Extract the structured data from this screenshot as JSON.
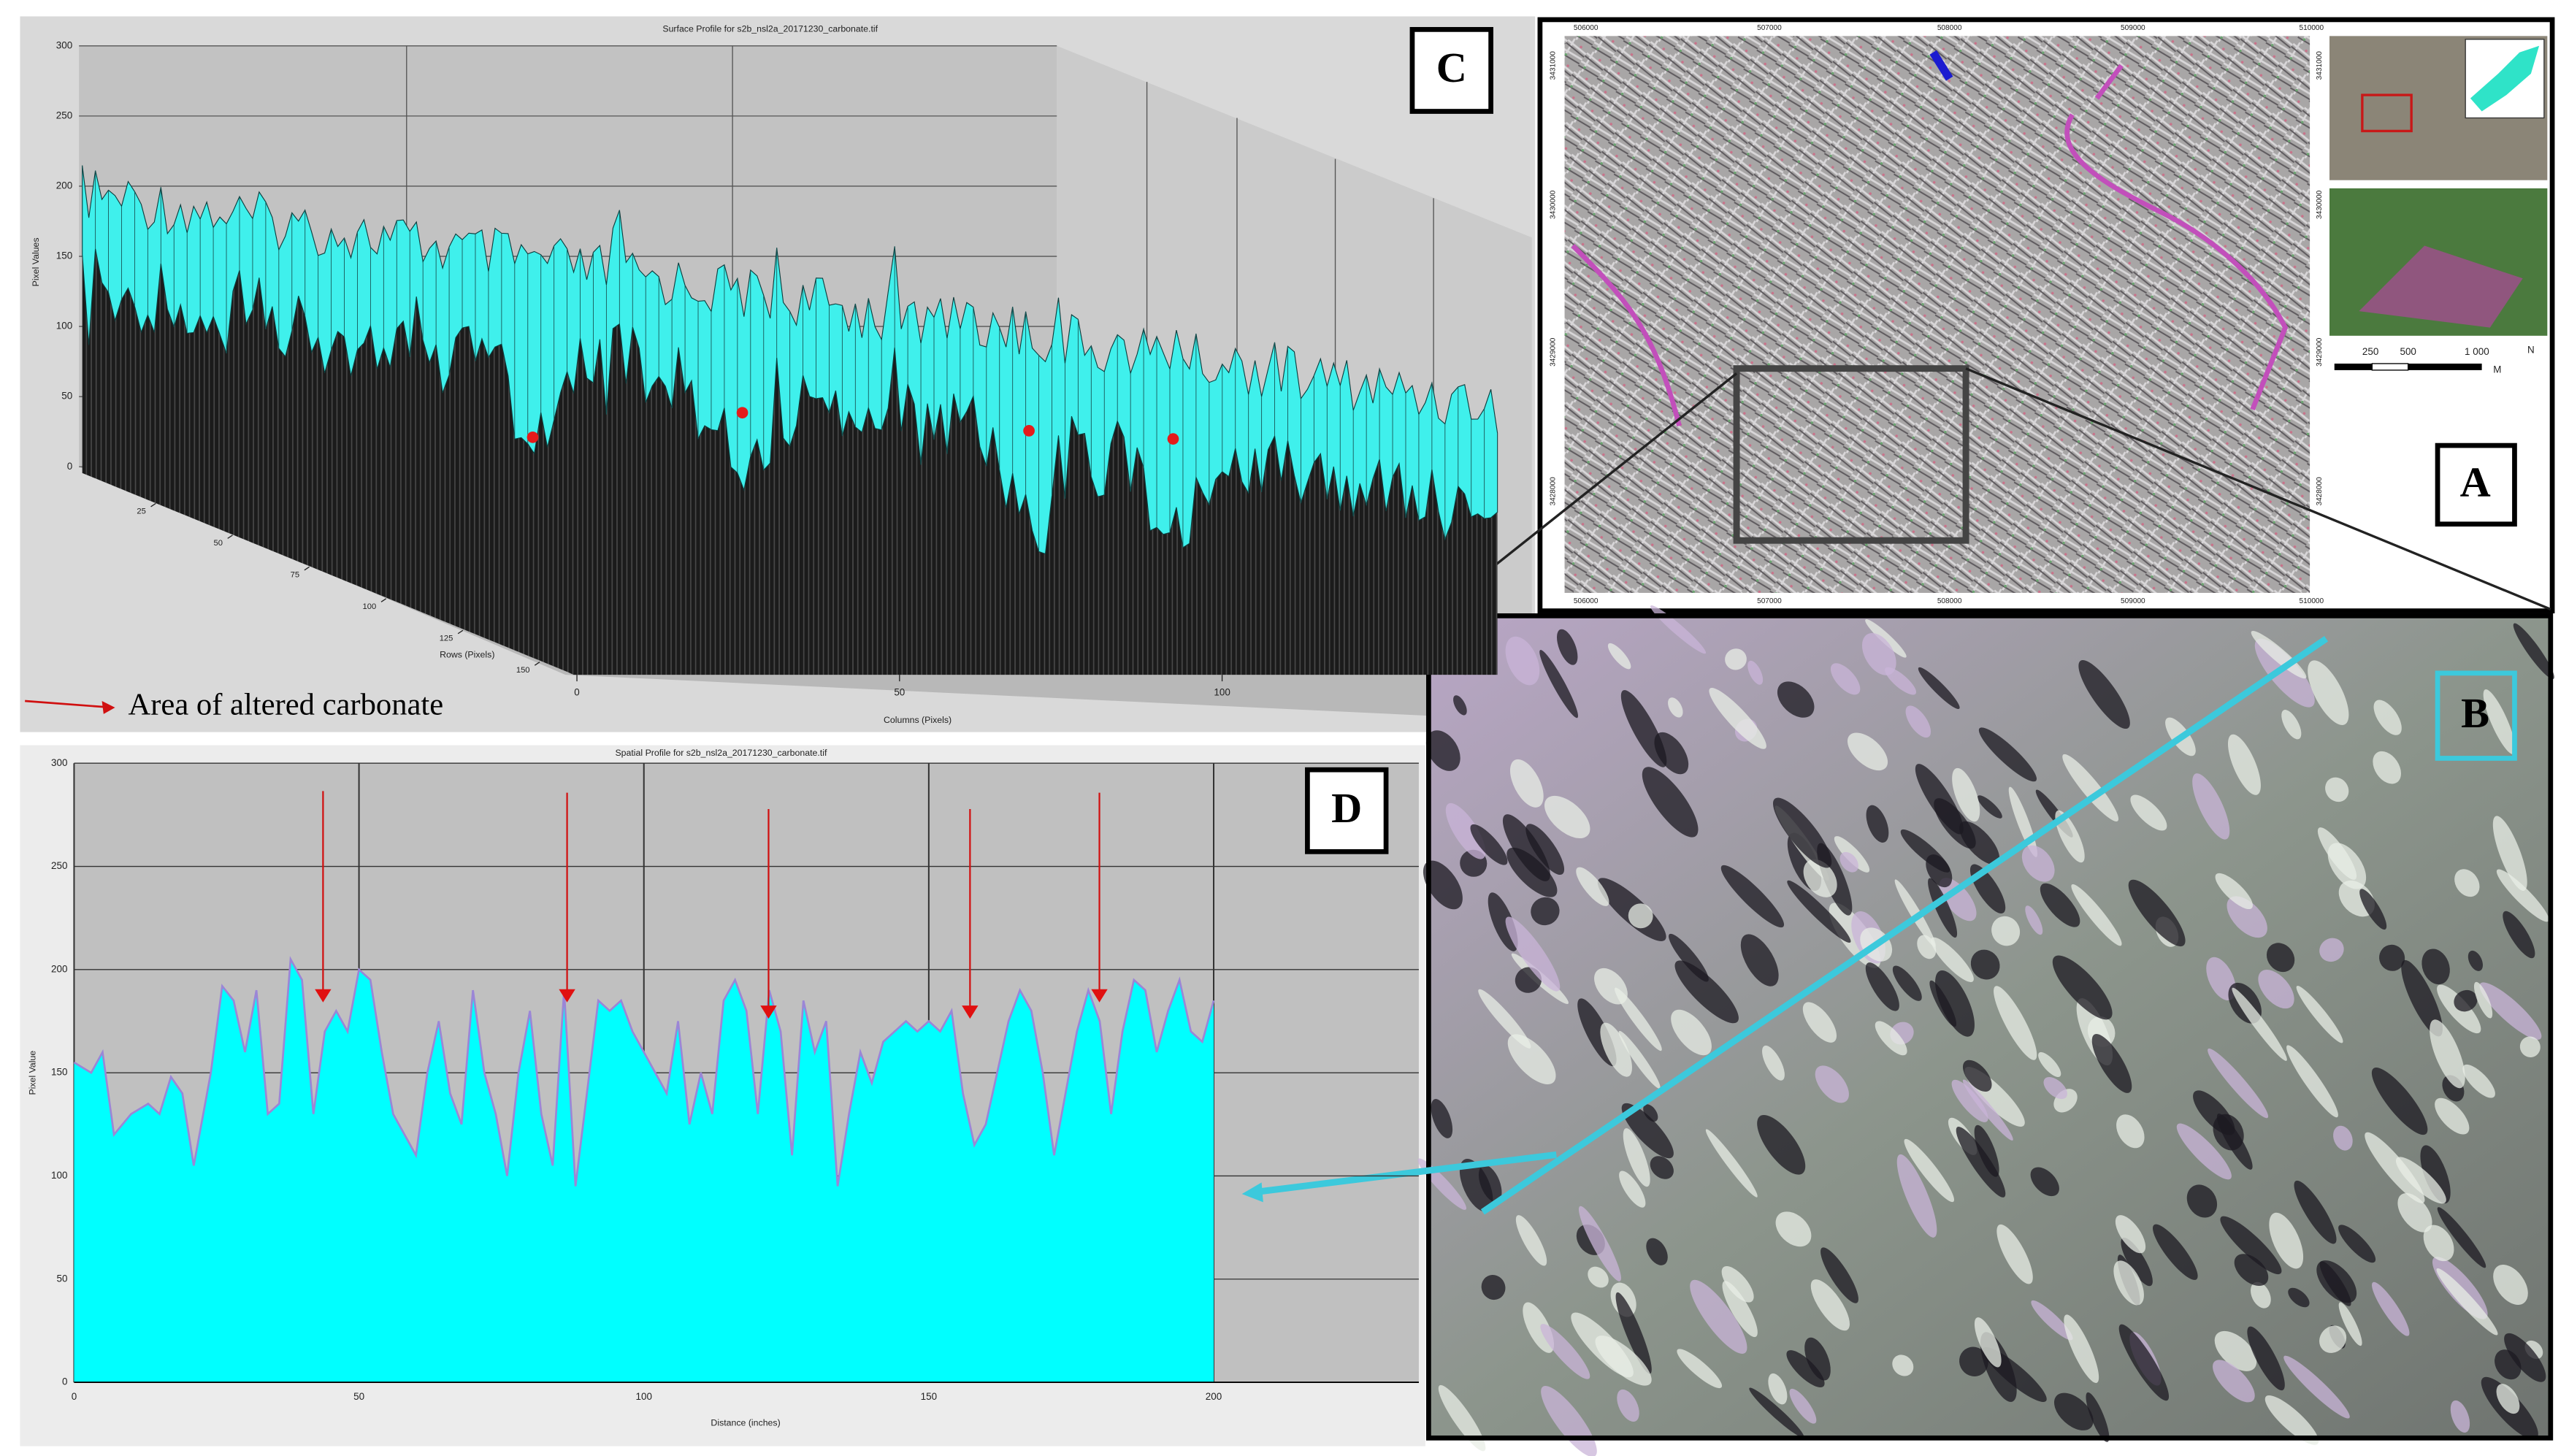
{
  "chart_data": [
    {
      "type": "surface",
      "title": "Surface Profile for s2b_nsl2a_20171230_carbonate.tif",
      "ylabel": "Pixel Values",
      "xlabel": "Columns (Pixels)",
      "rowlabel": "Rows (Pixels)",
      "ylim": [
        0,
        300
      ],
      "yticks": [
        0,
        50,
        100,
        150,
        200,
        250,
        300
      ],
      "xlim": [
        0,
        148
      ],
      "xticks": [
        0,
        50,
        100
      ],
      "rowlim": [
        0,
        160
      ],
      "rowticks": [
        25,
        50,
        75,
        100,
        125,
        150
      ],
      "color": "#3ff0ec",
      "grid": true
    },
    {
      "type": "area",
      "title": "Spatial Profile for s2b_nsl2a_20171230_carbonate.tif",
      "ylabel": "Pixel Value",
      "xlabel": "Distance (inches)",
      "xlim": [
        0,
        236
      ],
      "xticks": [
        0,
        50,
        100,
        150,
        200
      ],
      "ylim": [
        0,
        300
      ],
      "yticks": [
        0,
        50,
        100,
        150,
        200,
        250,
        300
      ],
      "color": "#00ffff",
      "line_color": "#9b86d6",
      "grid": true,
      "x": [
        0,
        3,
        5,
        7,
        10,
        13,
        15,
        17,
        19,
        21,
        24,
        26,
        28,
        30,
        32,
        34,
        36,
        38,
        40,
        42,
        44,
        46,
        48,
        50,
        52,
        54,
        56,
        58,
        60,
        62,
        64,
        66,
        68,
        70,
        72,
        74,
        76,
        78,
        80,
        82,
        84,
        86,
        88,
        90,
        92,
        94,
        96,
        98,
        100,
        102,
        104,
        106,
        108,
        110,
        112,
        114,
        116,
        118,
        120,
        122,
        124,
        126,
        128,
        130,
        132,
        134,
        136,
        138,
        140,
        142,
        144,
        146,
        148,
        150,
        152,
        154,
        156,
        158,
        160,
        162,
        164,
        166,
        168,
        170,
        172,
        174,
        176,
        178,
        180,
        182,
        184,
        186,
        188,
        190,
        192,
        194,
        196,
        198,
        200
      ],
      "values": [
        155,
        150,
        160,
        120,
        130,
        135,
        130,
        148,
        140,
        105,
        150,
        192,
        185,
        160,
        190,
        130,
        135,
        205,
        195,
        130,
        170,
        180,
        170,
        200,
        195,
        160,
        130,
        120,
        110,
        150,
        175,
        140,
        125,
        190,
        150,
        130,
        100,
        150,
        180,
        130,
        105,
        190,
        95,
        140,
        185,
        180,
        185,
        170,
        160,
        150,
        140,
        175,
        125,
        150,
        130,
        185,
        195,
        180,
        130,
        190,
        170,
        110,
        185,
        160,
        175,
        95,
        130,
        160,
        145,
        165,
        170,
        175,
        170,
        175,
        170,
        180,
        140,
        115,
        125,
        150,
        175,
        190,
        180,
        150,
        110,
        140,
        170,
        190,
        175,
        130,
        170,
        195,
        190,
        160,
        180,
        195,
        170,
        165,
        185
      ]
    }
  ],
  "legend": "Area of altered carbonate",
  "panel_labels": {
    "a": "A",
    "b": "B",
    "c": "C",
    "d": "D"
  },
  "map": {
    "easting": [
      "506000",
      "507000",
      "508000",
      "509000",
      "510000"
    ],
    "northing": [
      "3431000",
      "3430000",
      "3429000",
      "3428000"
    ],
    "scale": [
      "250",
      "500",
      "1 000",
      "M"
    ],
    "north": "N"
  }
}
